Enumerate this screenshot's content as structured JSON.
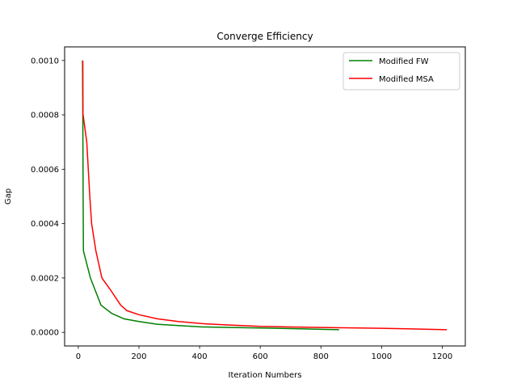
{
  "chart_data": {
    "type": "line",
    "title": "Converge Efficiency",
    "xlabel": "Iteration Numbers",
    "ylabel": "Gap",
    "xlim": [
      -45,
      1276
    ],
    "ylim": [
      -5e-05,
      0.00105
    ],
    "xticks": [
      0,
      200,
      400,
      600,
      800,
      1000,
      1200
    ],
    "xtick_labels": [
      "0",
      "200",
      "400",
      "600",
      "800",
      "1000",
      "1200"
    ],
    "yticks": [
      0.0,
      0.0002,
      0.0004,
      0.0006,
      0.0008,
      0.001
    ],
    "ytick_labels": [
      "0.0000",
      "0.0002",
      "0.0004",
      "0.0006",
      "0.0008",
      "0.0010"
    ],
    "grid": false,
    "legend_position": "top-right",
    "series": [
      {
        "name": "Modified FW",
        "color": "#008000",
        "x": [
          14,
          15,
          16,
          17,
          40,
          75,
          110,
          150,
          200,
          260,
          330,
          410,
          500,
          600,
          700,
          860
        ],
        "y": [
          0.001,
          0.0008,
          0.0005,
          0.0003,
          0.0002,
          0.0001,
          7e-05,
          5e-05,
          4e-05,
          3e-05,
          2.5e-05,
          2e-05,
          1.8e-05,
          1.6e-05,
          1.4e-05,
          1e-05
        ]
      },
      {
        "name": "Modified MSA",
        "color": "#ff0000",
        "x": [
          15,
          15.5,
          16,
          28,
          38,
          44,
          58,
          78,
          110,
          140,
          160,
          200,
          260,
          330,
          410,
          500,
          600,
          700,
          800,
          1000,
          1215
        ],
        "y": [
          0.001,
          0.0008,
          0.0008,
          0.0007,
          0.0005,
          0.0004,
          0.0003,
          0.0002,
          0.00015,
          0.0001,
          8e-05,
          6.5e-05,
          5e-05,
          4e-05,
          3.2e-05,
          2.7e-05,
          2.2e-05,
          2e-05,
          1.8e-05,
          1.5e-05,
          1e-05
        ]
      }
    ]
  }
}
